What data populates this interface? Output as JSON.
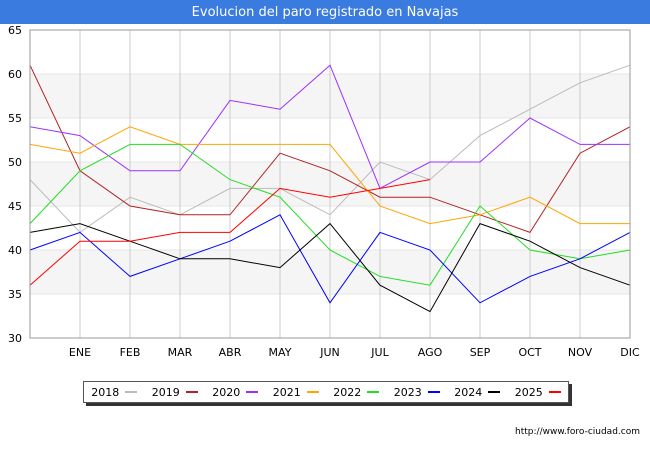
{
  "chart_data": {
    "type": "line",
    "title": "Evolucion del paro registrado en Navajas",
    "xlabel": "",
    "ylabel": "",
    "categories": [
      "",
      "ENE",
      "FEB",
      "MAR",
      "ABR",
      "MAY",
      "JUN",
      "JUL",
      "AGO",
      "SEP",
      "OCT",
      "NOV",
      "DIC"
    ],
    "ylim": [
      30,
      65
    ],
    "yticks": [
      30,
      35,
      40,
      45,
      50,
      55,
      60,
      65
    ],
    "grid": true,
    "legend_position": "bottom",
    "series": [
      {
        "name": "2018",
        "color": "#bbbbbb",
        "values": [
          48,
          42,
          46,
          44,
          47,
          47,
          44,
          50,
          48,
          53,
          56,
          59,
          61
        ]
      },
      {
        "name": "2019",
        "color": "#b22222",
        "values": [
          61,
          49,
          45,
          44,
          44,
          51,
          49,
          46,
          46,
          44,
          42,
          51,
          54
        ]
      },
      {
        "name": "2020",
        "color": "#9b30ff",
        "values": [
          54,
          53,
          49,
          49,
          57,
          56,
          61,
          47,
          50,
          50,
          55,
          52,
          52
        ]
      },
      {
        "name": "2021",
        "color": "#ffa500",
        "values": [
          52,
          51,
          54,
          52,
          52,
          52,
          52,
          45,
          43,
          44,
          46,
          43,
          43
        ]
      },
      {
        "name": "2022",
        "color": "#22dd22",
        "values": [
          43,
          49,
          52,
          52,
          48,
          46,
          40,
          37,
          36,
          45,
          40,
          39,
          40
        ]
      },
      {
        "name": "2023",
        "color": "#0000ff",
        "values": [
          40,
          42,
          37,
          39,
          41,
          44,
          34,
          42,
          40,
          34,
          37,
          39,
          42
        ]
      },
      {
        "name": "2024",
        "color": "#000000",
        "values": [
          42,
          43,
          41,
          39,
          39,
          38,
          43,
          36,
          33,
          43,
          41,
          38,
          36
        ]
      },
      {
        "name": "2025",
        "color": "#ff0000",
        "values": [
          36,
          41,
          41,
          42,
          42,
          47,
          46,
          47,
          48,
          null,
          null,
          null,
          null
        ]
      }
    ]
  },
  "credit": "http://www.foro-ciudad.com"
}
